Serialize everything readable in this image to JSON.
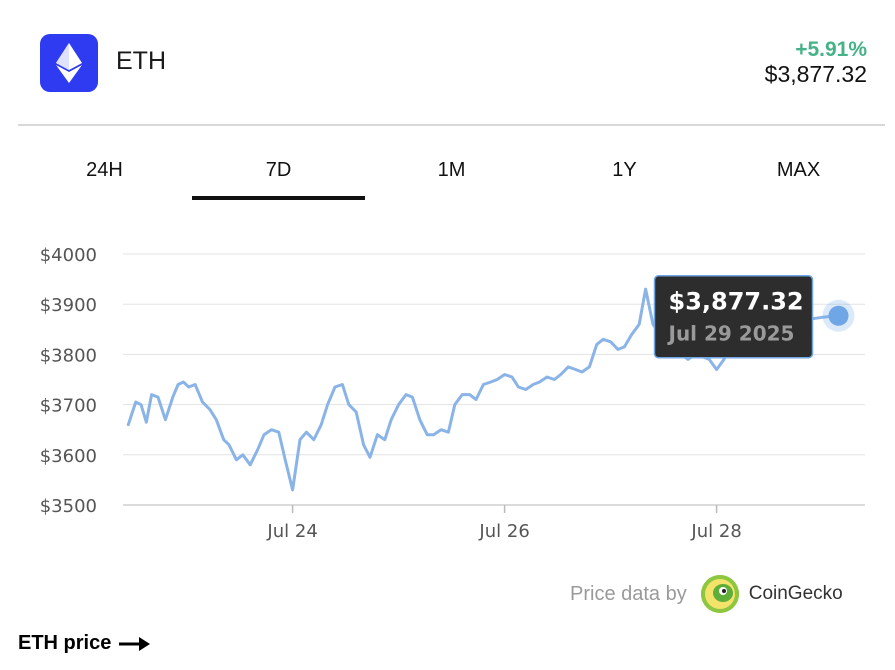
{
  "asset": {
    "symbol": "ETH",
    "change": "+5.91%",
    "price": "$3,877.32"
  },
  "tabs": [
    {
      "label": "24H",
      "active": false
    },
    {
      "label": "7D",
      "active": true
    },
    {
      "label": "1M",
      "active": false
    },
    {
      "label": "1Y",
      "active": false
    },
    {
      "label": "MAX",
      "active": false
    }
  ],
  "tooltip": {
    "price": "$3,877.32",
    "date": "Jul 29 2025"
  },
  "attribution": {
    "prefix": "Price data by",
    "brand": "CoinGecko"
  },
  "footer": {
    "link_label": "ETH price"
  },
  "colors": {
    "line": "#8ab4e8",
    "marker": "#6fa6e6",
    "positive": "#45b287",
    "brand_logo": "#2f3bf0"
  },
  "chart_data": {
    "type": "line",
    "title": "",
    "xlabel": "",
    "ylabel": "",
    "ylim": [
      3500,
      4000
    ],
    "yticks": [
      "$4000",
      "$3900",
      "$3800",
      "$3700",
      "$3600",
      "$3500"
    ],
    "ytick_values": [
      4000,
      3900,
      3800,
      3700,
      3600,
      3500
    ],
    "xticks": [
      "Jul 24",
      "Jul 26",
      "Jul 28"
    ],
    "xtick_values": [
      1.6,
      3.6,
      5.6
    ],
    "xlim": [
      0,
      7
    ],
    "grid": true,
    "series": [
      {
        "x": [
          0.05,
          0.12,
          0.17,
          0.22,
          0.27,
          0.33,
          0.4,
          0.47,
          0.52,
          0.57,
          0.62,
          0.68,
          0.75,
          0.82,
          0.88,
          0.95,
          1.0,
          1.07,
          1.13,
          1.2,
          1.27,
          1.33,
          1.4,
          1.47,
          1.53,
          1.6,
          1.67,
          1.73,
          1.8,
          1.87,
          1.93,
          2.0,
          2.07,
          2.13,
          2.2,
          2.27,
          2.33,
          2.4,
          2.47,
          2.53,
          2.6,
          2.67,
          2.73,
          2.8,
          2.87,
          2.93,
          3.0,
          3.07,
          3.13,
          3.2,
          3.27,
          3.33,
          3.4,
          3.47,
          3.53,
          3.6,
          3.67,
          3.73,
          3.8,
          3.87,
          3.93,
          4.0,
          4.07,
          4.13,
          4.2,
          4.27,
          4.33,
          4.4,
          4.47,
          4.53,
          4.6,
          4.67,
          4.73,
          4.8,
          4.87,
          4.93,
          5.0,
          5.07,
          5.13,
          5.2,
          5.27,
          5.33,
          5.4,
          5.47,
          5.53,
          5.6,
          5.67,
          5.73,
          5.8,
          5.87,
          5.93,
          6.0,
          6.07,
          6.13,
          6.2,
          6.27,
          6.33,
          6.4,
          6.47,
          6.53,
          6.6,
          6.65,
          6.7,
          6.75
        ],
        "y": [
          3660,
          3705,
          3700,
          3665,
          3720,
          3715,
          3670,
          3715,
          3740,
          3745,
          3735,
          3740,
          3705,
          3690,
          3670,
          3630,
          3620,
          3590,
          3600,
          3580,
          3610,
          3640,
          3650,
          3645,
          3590,
          3530,
          3630,
          3645,
          3630,
          3660,
          3700,
          3735,
          3740,
          3700,
          3685,
          3620,
          3595,
          3640,
          3630,
          3670,
          3700,
          3720,
          3715,
          3670,
          3640,
          3640,
          3650,
          3645,
          3700,
          3720,
          3720,
          3710,
          3740,
          3745,
          3750,
          3760,
          3755,
          3735,
          3730,
          3740,
          3745,
          3755,
          3750,
          3760,
          3775,
          3770,
          3765,
          3775,
          3820,
          3830,
          3825,
          3810,
          3815,
          3840,
          3860,
          3930,
          3860,
          3840,
          3830,
          3850,
          3800,
          3790,
          3800,
          3795,
          3790,
          3770,
          3790,
          3820,
          3835,
          3838,
          3845,
          3850,
          3855,
          3860,
          3862,
          3865,
          3866,
          3868,
          3870,
          3872,
          3874,
          3875,
          3876,
          3877
        ]
      }
    ]
  }
}
